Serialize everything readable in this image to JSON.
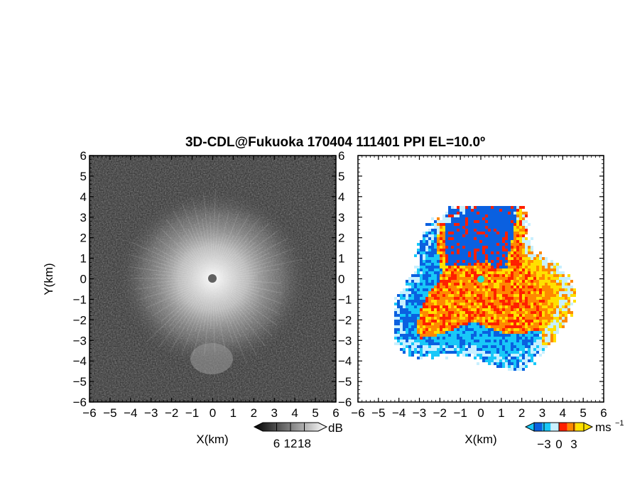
{
  "title": "3D-CDL@Fukuoka 170404 111401 PPI EL=10.0º",
  "chart_data": [
    {
      "type": "heatmap",
      "name": "reflectivity",
      "xlabel": "X(km)",
      "ylabel": "Y(km)",
      "xlim": [
        -6,
        6
      ],
      "ylim": [
        -6,
        6
      ],
      "xticks": [
        "−6",
        "−5",
        "−4",
        "−3",
        "−2",
        "−1",
        "0",
        "1",
        "2",
        "3",
        "4",
        "5",
        "6"
      ],
      "yticks": [
        "−6",
        "−5",
        "−4",
        "−3",
        "−2",
        "−1",
        "0",
        "1",
        "2",
        "3",
        "4",
        "5",
        "6"
      ],
      "colorbar": {
        "unit": "dB",
        "tick_labels": [
          "6",
          "12",
          "18"
        ],
        "ticks": [
          6,
          12,
          18
        ],
        "range": [
          0,
          24
        ]
      }
    },
    {
      "type": "heatmap",
      "name": "doppler-velocity",
      "xlabel": "X(km)",
      "ylabel": "",
      "xlim": [
        -6,
        6
      ],
      "ylim": [
        -6,
        6
      ],
      "xticks": [
        "−6",
        "−5",
        "−4",
        "−3",
        "−2",
        "−1",
        "0",
        "1",
        "2",
        "3",
        "4",
        "5",
        "6"
      ],
      "yticks": [
        "−6",
        "−5",
        "−4",
        "−3",
        "−2",
        "−1",
        "0",
        "1",
        "2",
        "3",
        "4",
        "5",
        "6"
      ],
      "colorbar": {
        "unit": "ms",
        "unit_sup": "−1",
        "tick_labels": [
          "−3",
          "0",
          "3"
        ],
        "ticks": [
          -3,
          0,
          3
        ],
        "range": [
          -5,
          5
        ]
      }
    }
  ],
  "colors": {
    "background_left": "#2a2a2a",
    "velocity_scale": [
      "#0a60e0",
      "#18c8f8",
      "#c8f0ff",
      "#ff2000",
      "#ff8800",
      "#ffe000"
    ],
    "marker": "#606060",
    "marker_right": "#20e0d0"
  }
}
